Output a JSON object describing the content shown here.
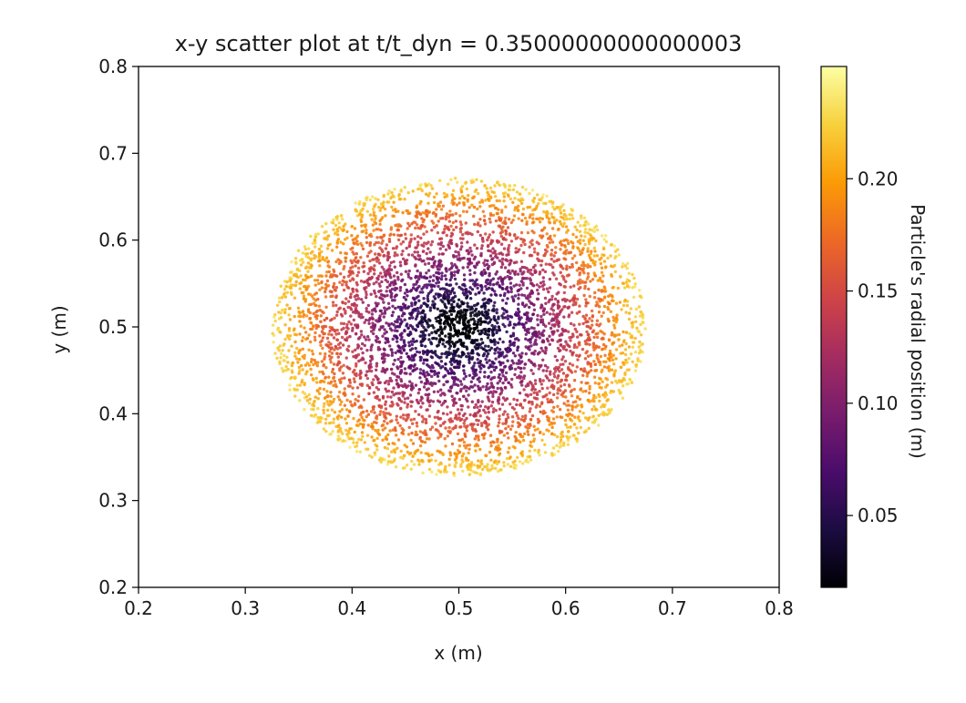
{
  "chart_data": {
    "type": "scatter",
    "title": "x-y scatter plot at t/t_dyn = 0.35000000000000003",
    "xlabel": "x (m)",
    "ylabel": "y (m)",
    "xlim": [
      0.2,
      0.8
    ],
    "ylim": [
      0.2,
      0.8
    ],
    "xticks": [
      "0.2",
      "0.3",
      "0.4",
      "0.5",
      "0.6",
      "0.7",
      "0.8"
    ],
    "yticks": [
      "0.2",
      "0.3",
      "0.4",
      "0.5",
      "0.6",
      "0.7",
      "0.8"
    ],
    "grid": false,
    "colormap": "inferno",
    "center": [
      0.5,
      0.5
    ],
    "max_radius": 0.175,
    "colorbar": {
      "label": "Particle's radial position (m)",
      "range": [
        0.018,
        0.25
      ],
      "ticks": [
        "0.05",
        "0.10",
        "0.15",
        "0.20"
      ],
      "tick_values": [
        0.05,
        0.1,
        0.15,
        0.2
      ]
    },
    "colors": {
      "inferno_stops": [
        "#000004",
        "#1b0c41",
        "#4a0c6b",
        "#781c6d",
        "#a52c60",
        "#cf4446",
        "#ed6925",
        "#fb9b06",
        "#f7d13d",
        "#fcffa4"
      ],
      "axis": "#000000",
      "background": "#ffffff"
    }
  }
}
